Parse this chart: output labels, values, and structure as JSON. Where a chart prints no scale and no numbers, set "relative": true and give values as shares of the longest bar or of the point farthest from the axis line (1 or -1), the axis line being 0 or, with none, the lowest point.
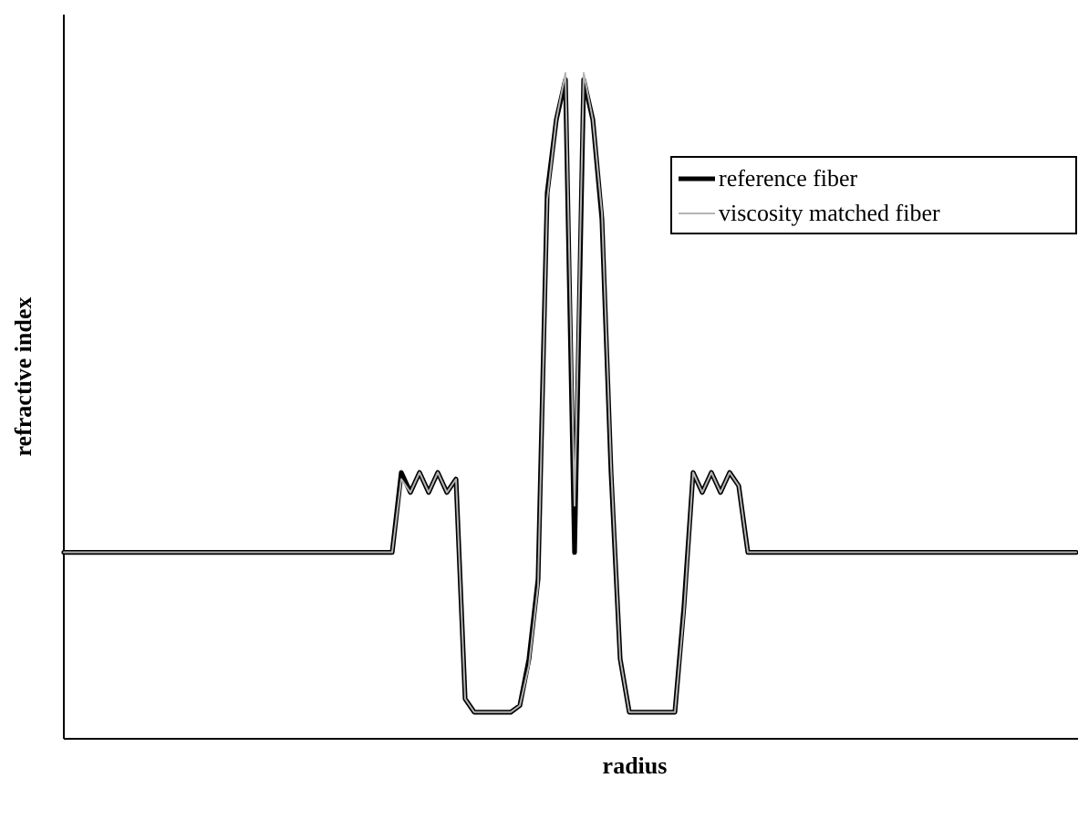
{
  "chart_data": {
    "type": "line",
    "relative": true,
    "xlabel": "radius",
    "ylabel": "refractive index",
    "legend": "top right",
    "categories": [
      null,
      null,
      null,
      null,
      null,
      null,
      null,
      null,
      null,
      null,
      null,
      null,
      null,
      null,
      null,
      null,
      null,
      null,
      null,
      null,
      null,
      null,
      null,
      null,
      null,
      null,
      null,
      null,
      null,
      null,
      null,
      null,
      null,
      null,
      null,
      null,
      null,
      null,
      null,
      null,
      null,
      null,
      null,
      null,
      null,
      null,
      null,
      null,
      null,
      null,
      null,
      null,
      null,
      null,
      null,
      null,
      null,
      null,
      null,
      null,
      null,
      null,
      null,
      null,
      null,
      null,
      null,
      null,
      null,
      null,
      null,
      null,
      null,
      null,
      null,
      null,
      null,
      null,
      null,
      null,
      null,
      null,
      null,
      null,
      null,
      null,
      null,
      null,
      null,
      null,
      null,
      null,
      null,
      null,
      null,
      null,
      null,
      null,
      null,
      null,
      null,
      null,
      null,
      null,
      null,
      null,
      null,
      null,
      null,
      null,
      null,
      null
    ],
    "series": [
      {
        "name": "reference fiber",
        "color": "#000000",
        "values": [
          0.28,
          0.28,
          0.28,
          0.28,
          0.28,
          0.28,
          0.28,
          0.28,
          0.28,
          0.28,
          0.28,
          0.28,
          0.28,
          0.28,
          0.28,
          0.28,
          0.28,
          0.28,
          0.28,
          0.28,
          0.28,
          0.28,
          0.28,
          0.28,
          0.28,
          0.28,
          0.28,
          0.28,
          0.28,
          0.28,
          0.28,
          0.28,
          0.28,
          0.28,
          0.28,
          0.28,
          0.28,
          0.4,
          0.37,
          0.4,
          0.37,
          0.4,
          0.37,
          0.39,
          0.06,
          0.04,
          0.04,
          0.04,
          0.04,
          0.04,
          0.05,
          0.12,
          0.24,
          0.82,
          0.93,
          0.99,
          0.28,
          0.99,
          0.93,
          0.78,
          0.4,
          0.12,
          0.04,
          0.04,
          0.04,
          0.04,
          0.04,
          0.04,
          0.2,
          0.4,
          0.37,
          0.4,
          0.37,
          0.4,
          0.38,
          0.28,
          0.28,
          0.28,
          0.28,
          0.28,
          0.28,
          0.28,
          0.28,
          0.28,
          0.28,
          0.28,
          0.28,
          0.28,
          0.28,
          0.28,
          0.28,
          0.28,
          0.28,
          0.28,
          0.28,
          0.28,
          0.28,
          0.28,
          0.28,
          0.28,
          0.28,
          0.28,
          0.28,
          0.28,
          0.28,
          0.28,
          0.28,
          0.28,
          0.28,
          0.28,
          0.28,
          0.28
        ]
      },
      {
        "name": "viscosity matched fiber",
        "color": "#b4b4b4",
        "values": [
          0.28,
          0.28,
          0.28,
          0.28,
          0.28,
          0.28,
          0.28,
          0.28,
          0.28,
          0.28,
          0.28,
          0.28,
          0.28,
          0.28,
          0.28,
          0.28,
          0.28,
          0.28,
          0.28,
          0.28,
          0.28,
          0.28,
          0.28,
          0.28,
          0.28,
          0.28,
          0.28,
          0.28,
          0.28,
          0.28,
          0.28,
          0.28,
          0.28,
          0.28,
          0.28,
          0.28,
          0.28,
          0.39,
          0.37,
          0.4,
          0.37,
          0.4,
          0.37,
          0.39,
          0.06,
          0.04,
          0.04,
          0.04,
          0.04,
          0.04,
          0.05,
          0.11,
          0.23,
          0.81,
          0.93,
          1,
          0.35,
          1,
          0.93,
          0.79,
          0.41,
          0.12,
          0.04,
          0.04,
          0.04,
          0.04,
          0.04,
          0.04,
          0.19,
          0.4,
          0.37,
          0.4,
          0.37,
          0.4,
          0.38,
          0.28,
          0.28,
          0.28,
          0.28,
          0.28,
          0.28,
          0.28,
          0.28,
          0.28,
          0.28,
          0.28,
          0.28,
          0.28,
          0.28,
          0.28,
          0.28,
          0.28,
          0.28,
          0.28,
          0.28,
          0.28,
          0.28,
          0.28,
          0.28,
          0.28,
          0.28,
          0.28,
          0.28,
          0.28,
          0.28,
          0.28,
          0.28,
          0.28,
          0.28,
          0.28,
          0.28,
          0.28
        ]
      }
    ]
  }
}
